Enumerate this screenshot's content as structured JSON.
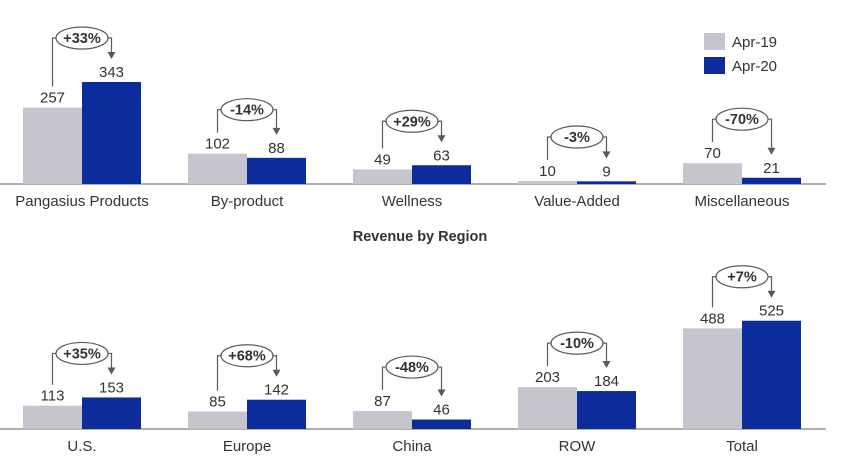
{
  "colors": {
    "apr19": "#c4c5cd",
    "apr20": "#0b2c9a",
    "axis": "#7f7f7f",
    "text": "#333333",
    "badge_border": "#5a5a5a"
  },
  "legend": {
    "items": [
      {
        "label": "Apr-19",
        "color": "#c4c5cd"
      },
      {
        "label": "Apr-20",
        "color": "#0b2c9a"
      }
    ],
    "placement": "top-right"
  },
  "chart_data": [
    {
      "type": "bar",
      "title": "",
      "categories": [
        "Pangasius Products",
        "By-product",
        "Wellness",
        "Value-Added",
        "Miscellaneous"
      ],
      "series": [
        {
          "name": "Apr-19",
          "values": [
            257,
            102,
            49,
            10,
            70
          ]
        },
        {
          "name": "Apr-20",
          "values": [
            343,
            88,
            63,
            9,
            21
          ]
        }
      ],
      "value_labels": [
        [
          "257",
          "343"
        ],
        [
          "102",
          "88"
        ],
        [
          "49",
          "63"
        ],
        [
          "10",
          "9"
        ],
        [
          "70",
          "21"
        ]
      ],
      "changes": [
        "+33%",
        "-14%",
        "+29%",
        "-3%",
        "-70%"
      ],
      "xlabel": "",
      "ylabel": ""
    },
    {
      "type": "bar",
      "title": "Revenue by Region",
      "categories": [
        "U.S.",
        "Europe",
        "China",
        "ROW",
        "Total"
      ],
      "series": [
        {
          "name": "Apr-19",
          "values": [
            113,
            85,
            87,
            203,
            488
          ]
        },
        {
          "name": "Apr-20",
          "values": [
            153,
            142,
            46,
            184,
            525
          ]
        }
      ],
      "value_labels": [
        [
          "113",
          "153"
        ],
        [
          "85",
          "142"
        ],
        [
          "87",
          "46"
        ],
        [
          "203",
          "184"
        ],
        [
          "488",
          "525"
        ]
      ],
      "changes": [
        "+35%",
        "+68%",
        "-48%",
        "-10%",
        "+7%"
      ],
      "xlabel": "",
      "ylabel": ""
    }
  ]
}
